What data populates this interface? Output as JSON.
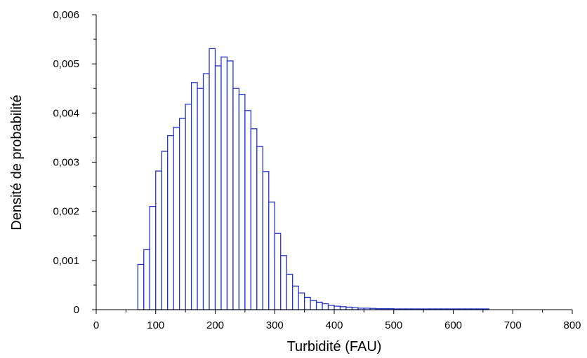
{
  "chart_data": {
    "type": "bar",
    "title": "",
    "xlabel": "Turbidité (FAU)",
    "ylabel": "Densité de probabilité",
    "xlim": [
      0,
      800
    ],
    "ylim": [
      0,
      0.006
    ],
    "x_ticks": [
      0,
      100,
      200,
      300,
      400,
      500,
      600,
      700,
      800
    ],
    "x_tick_labels": [
      "0",
      "100",
      "200",
      "300",
      "400",
      "500",
      "600",
      "700",
      "800"
    ],
    "y_ticks": [
      0,
      0.001,
      0.002,
      0.003,
      0.004,
      0.005,
      0.006
    ],
    "y_tick_labels": [
      "0",
      "0,001",
      "0,002",
      "0,003",
      "0,004",
      "0,005",
      "0,006"
    ],
    "y_minor_step": 0.0005,
    "grid": false,
    "bar_color": "#2233cc",
    "bin_width": 10,
    "bin_starts": [
      70,
      80,
      90,
      100,
      110,
      120,
      130,
      140,
      150,
      160,
      170,
      180,
      190,
      200,
      210,
      220,
      230,
      240,
      250,
      260,
      270,
      280,
      290,
      300,
      310,
      320,
      330,
      340,
      350,
      360,
      370,
      380,
      390,
      400,
      410,
      420,
      430,
      440,
      450,
      460,
      470,
      480,
      490,
      500,
      510,
      520,
      530,
      540,
      550,
      560,
      570,
      580,
      590,
      600,
      610,
      620,
      630,
      640,
      650
    ],
    "values": [
      0.00092,
      0.00122,
      0.0021,
      0.00282,
      0.00322,
      0.00354,
      0.00371,
      0.00389,
      0.00418,
      0.00462,
      0.0045,
      0.0048,
      0.00531,
      0.00496,
      0.00514,
      0.00506,
      0.0045,
      0.00438,
      0.00405,
      0.00368,
      0.00332,
      0.00281,
      0.00219,
      0.00155,
      0.0011,
      0.00072,
      0.00048,
      0.00034,
      0.00025,
      0.00019,
      0.00015,
      0.00012,
      9e-05,
      7e-05,
      6e-05,
      5e-05,
      4e-05,
      3e-05,
      3e-05,
      2.5e-05,
      2e-05,
      2e-05,
      2e-05,
      1.5e-05,
      1.5e-05,
      1.5e-05,
      1.5e-05,
      1.5e-05,
      1.5e-05,
      1.5e-05,
      1.5e-05,
      1.5e-05,
      1.5e-05,
      1.5e-05,
      1.5e-05,
      1.5e-05,
      1.5e-05,
      1.5e-05,
      1.5e-05
    ]
  }
}
